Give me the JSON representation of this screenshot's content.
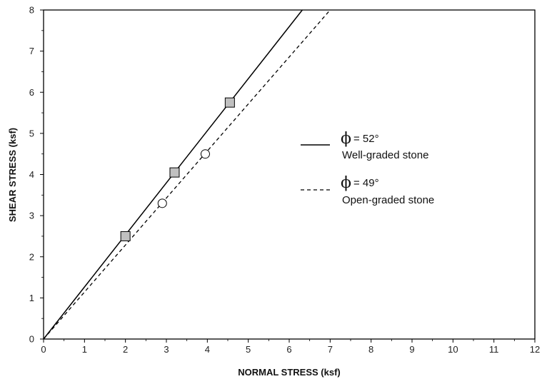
{
  "chart_data": {
    "type": "scatter",
    "title": "",
    "xlabel": "NORMAL STRESS (ksf)",
    "ylabel": "SHEAR STRESS (ksf)",
    "xlim": [
      0,
      12
    ],
    "ylim": [
      0,
      8
    ],
    "xticks": [
      0,
      1,
      2,
      3,
      4,
      5,
      6,
      7,
      8,
      9,
      10,
      11,
      12
    ],
    "yticks": [
      0,
      1,
      2,
      3,
      4,
      5,
      6,
      7,
      8
    ],
    "grid": false,
    "legend_position": "right",
    "series": [
      {
        "name": "Well-graded stone",
        "phi_label": "= 52°",
        "line_style": "solid",
        "marker": "square",
        "marker_color": "#c0c0c0",
        "points": [
          {
            "x": 2.0,
            "y": 2.5
          },
          {
            "x": 3.2,
            "y": 4.05
          },
          {
            "x": 4.55,
            "y": 5.75
          }
        ],
        "fit_line": [
          {
            "x": 0,
            "y": 0
          },
          {
            "x": 6.32,
            "y": 8
          }
        ]
      },
      {
        "name": "Open-graded stone",
        "phi_label": "= 49°",
        "line_style": "dashed",
        "marker": "circle",
        "marker_color": "#ffffff",
        "points": [
          {
            "x": 2.9,
            "y": 3.3
          },
          {
            "x": 3.95,
            "y": 4.5
          }
        ],
        "fit_line": [
          {
            "x": 0,
            "y": 0
          },
          {
            "x": 7.0,
            "y": 8
          }
        ]
      }
    ]
  },
  "legend": {
    "phi_symbol": "ϕ",
    "entries": [
      {
        "phi": "= 52°",
        "label": "Well-graded stone"
      },
      {
        "phi": "= 49°",
        "label": "Open-graded stone"
      }
    ]
  },
  "colors": {
    "axis": "#000000",
    "line": "#000000",
    "square_fill": "#c0c0c0",
    "circle_fill": "#ffffff"
  }
}
